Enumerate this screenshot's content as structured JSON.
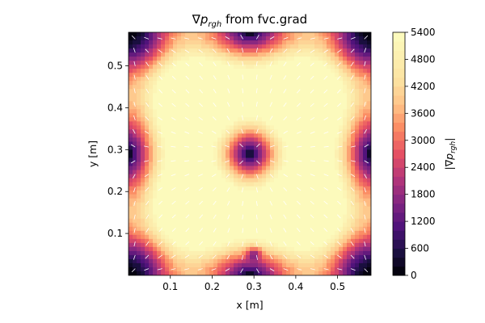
{
  "chart_data": {
    "type": "heatmap",
    "title_parts": {
      "nabla": "∇",
      "p": "p",
      "sub": "rgh",
      "rest": " from fvc.grad"
    },
    "xlabel": "x  [m]",
    "ylabel": "y  [m]",
    "xlim": [
      0.0,
      0.58
    ],
    "ylim": [
      0.0,
      0.58
    ],
    "x_ticks": [
      0.1,
      0.2,
      0.3,
      0.4,
      0.5
    ],
    "x_tick_labels": [
      "0.1",
      "0.2",
      "0.3",
      "0.4",
      "0.5"
    ],
    "y_ticks": [
      0.1,
      0.2,
      0.3,
      0.4,
      0.5
    ],
    "y_tick_labels": [
      "0.1",
      "0.2",
      "0.3",
      "0.4",
      "0.5"
    ],
    "colorbar": {
      "label_parts": {
        "open": "|∇",
        "p": "p",
        "sub": "rgh",
        "close": "|"
      },
      "min": 0,
      "max": 5400,
      "levels": 27,
      "ticks": [
        0,
        600,
        1200,
        1800,
        2400,
        3000,
        3600,
        4200,
        4800,
        5400
      ],
      "tick_labels": [
        "0",
        "600",
        "1200",
        "1800",
        "2400",
        "3000",
        "3600",
        "4200",
        "4800",
        "5400"
      ],
      "colormap": "magma"
    },
    "field": {
      "description_values": {
        "center_minimum": [
          0.29,
          0.29,
          0
        ],
        "edge_maxima_value": 5400,
        "corner_value": 1300,
        "local_low_spot": [
          0.3,
          0.05,
          2600
        ]
      }
    },
    "quiver": {
      "color": "#ffffff"
    }
  }
}
